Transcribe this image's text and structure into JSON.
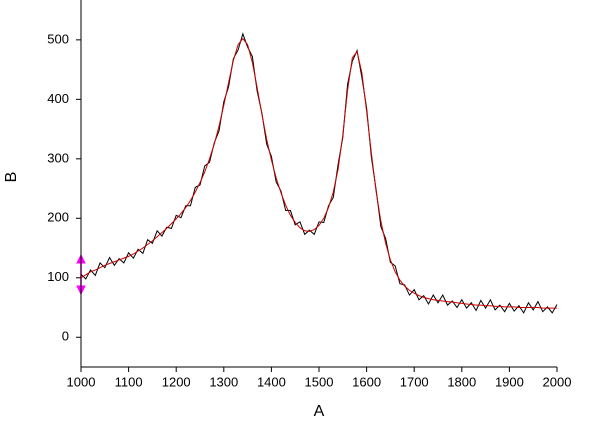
{
  "chart_data": {
    "type": "line",
    "x_label": "A",
    "y_label": "B",
    "x": [
      1000,
      1010,
      1020,
      1030,
      1040,
      1050,
      1060,
      1070,
      1080,
      1090,
      1100,
      1110,
      1120,
      1130,
      1140,
      1150,
      1160,
      1170,
      1180,
      1190,
      1200,
      1210,
      1220,
      1230,
      1240,
      1250,
      1260,
      1270,
      1280,
      1290,
      1300,
      1310,
      1320,
      1330,
      1340,
      1350,
      1360,
      1370,
      1380,
      1390,
      1400,
      1410,
      1420,
      1430,
      1440,
      1450,
      1460,
      1470,
      1480,
      1490,
      1500,
      1510,
      1520,
      1530,
      1540,
      1550,
      1560,
      1570,
      1580,
      1590,
      1600,
      1610,
      1620,
      1630,
      1640,
      1650,
      1660,
      1670,
      1680,
      1690,
      1700,
      1710,
      1720,
      1730,
      1740,
      1750,
      1760,
      1770,
      1780,
      1790,
      1800,
      1810,
      1820,
      1830,
      1840,
      1850,
      1860,
      1870,
      1880,
      1890,
      1900,
      1910,
      1920,
      1930,
      1940,
      1950,
      1960,
      1970,
      1980,
      1990,
      2000
    ],
    "series": [
      {
        "color": "#000000",
        "values": [
          106,
          98,
          113,
          104,
          125,
          117,
          134,
          121,
          132,
          125,
          142,
          133,
          148,
          141,
          164,
          158,
          179,
          170,
          185,
          183,
          205,
          201,
          221,
          221,
          252,
          256,
          288,
          294,
          327,
          347,
          396,
          421,
          468,
          483,
          510,
          488,
          472,
          414,
          377,
          325,
          304,
          261,
          246,
          213,
          213,
          189,
          194,
          173,
          180,
          173,
          194,
          193,
          221,
          235,
          290,
          336,
          425,
          464,
          482,
          437,
          386,
          303,
          248,
          186,
          166,
          126,
          120,
          90,
          88,
          71,
          80,
          63,
          70,
          56,
          71,
          58,
          71,
          54,
          61,
          50,
          63,
          49,
          58,
          45,
          62,
          49,
          63,
          46,
          54,
          43,
          57,
          44,
          53,
          41,
          58,
          46,
          60,
          43,
          51,
          41,
          55
        ]
      },
      {
        "color": "#cc0000",
        "values": [
          100,
          105,
          110,
          113,
          117,
          121,
          124,
          127,
          130,
          133,
          136,
          140,
          145,
          150,
          156,
          162,
          169,
          176,
          183,
          191,
          199,
          208,
          218,
          230,
          244,
          260,
          278,
          300,
          325,
          355,
          390,
          428,
          465,
          492,
          502,
          492,
          462,
          420,
          375,
          333,
          298,
          268,
          243,
          222,
          205,
          193,
          184,
          179,
          178,
          181,
          188,
          200,
          218,
          244,
          282,
          340,
          415,
          470,
          480,
          445,
          380,
          310,
          245,
          195,
          158,
          130,
          110,
          96,
          86,
          79,
          74,
          70,
          67,
          65,
          63,
          62,
          61,
          60,
          59,
          58,
          57,
          56,
          55,
          54,
          54,
          53,
          53,
          52,
          52,
          51,
          51,
          51,
          50,
          50,
          50,
          50,
          50,
          49,
          49,
          49,
          49
        ]
      }
    ],
    "xlim": [
      1000,
      2000
    ],
    "ylim": [
      -50,
      567
    ],
    "xticks": [
      1000,
      1100,
      1200,
      1300,
      1400,
      1500,
      1600,
      1700,
      1800,
      1900,
      2000
    ],
    "yticks": [
      0,
      100,
      200,
      300,
      400,
      500
    ]
  }
}
